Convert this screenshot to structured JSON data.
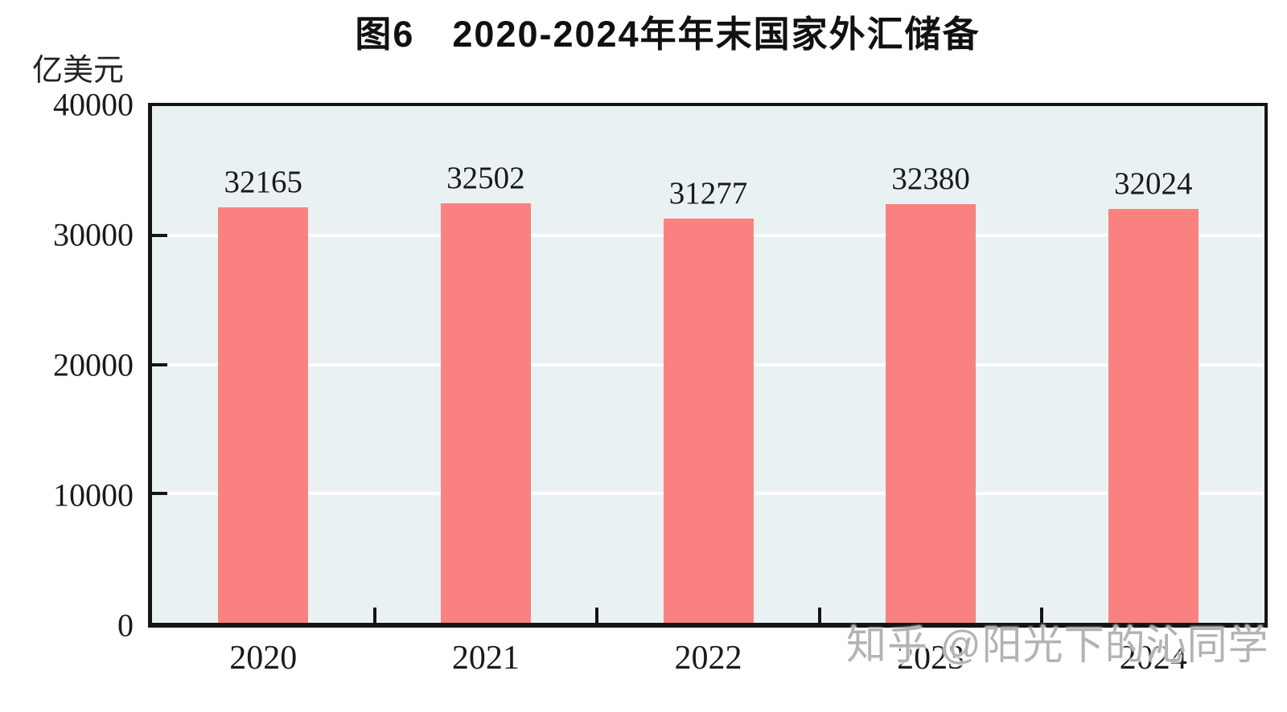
{
  "page": {
    "background": "#ffffff"
  },
  "chart_data": {
    "type": "bar",
    "title": "图6　2020-2024年年末国家外汇储备",
    "unit_label": "亿美元",
    "categories": [
      "2020",
      "2021",
      "2022",
      "2023",
      "2024"
    ],
    "values": [
      32165,
      32502,
      31277,
      32380,
      32024
    ],
    "ylim": [
      0,
      40000
    ],
    "yticks": [
      0,
      10000,
      20000,
      30000,
      40000
    ],
    "grid": "horizontal-white-lines-at-yticks",
    "legend": "none",
    "tick_direction": "in",
    "value_labels_shown": true,
    "colors": {
      "bar": "#f98280",
      "plot_bg": "#eaf1f3",
      "axis": "#141414",
      "gridline": "#ffffff",
      "text": "#1a1a1a"
    }
  },
  "watermark": {
    "text": "知乎 @阳光下的沁同学",
    "color": "#b3b3b3"
  }
}
